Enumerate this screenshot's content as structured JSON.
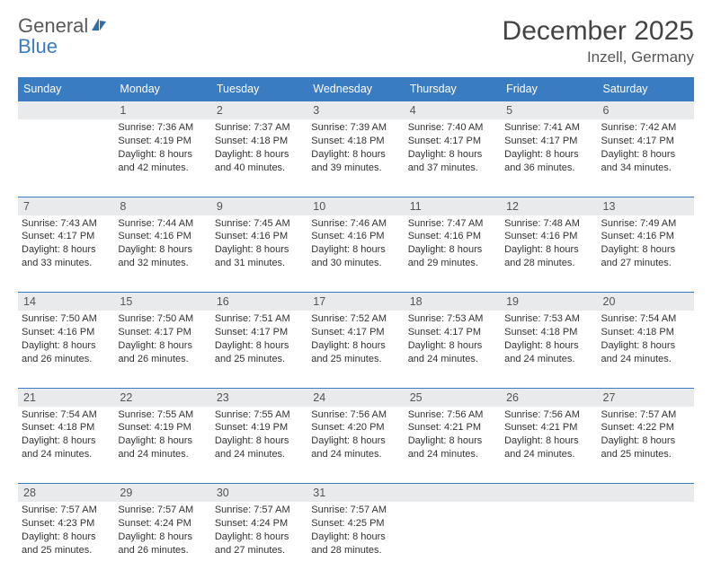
{
  "brand": {
    "name1": "General",
    "name2": "Blue"
  },
  "title": "December 2025",
  "location": "Inzell, Germany",
  "colors": {
    "header_bg": "#3a7cc2",
    "header_text": "#ffffff",
    "daybar_bg": "#e9eaeb",
    "rule": "#3a7cc2",
    "page_bg": "#ffffff",
    "text": "#333333"
  },
  "day_headers": [
    "Sunday",
    "Monday",
    "Tuesday",
    "Wednesday",
    "Thursday",
    "Friday",
    "Saturday"
  ],
  "weeks": [
    {
      "nums": [
        "",
        "1",
        "2",
        "3",
        "4",
        "5",
        "6"
      ],
      "cells": [
        null,
        {
          "sr": "Sunrise: 7:36 AM",
          "ss": "Sunset: 4:19 PM",
          "d1": "Daylight: 8 hours",
          "d2": "and 42 minutes."
        },
        {
          "sr": "Sunrise: 7:37 AM",
          "ss": "Sunset: 4:18 PM",
          "d1": "Daylight: 8 hours",
          "d2": "and 40 minutes."
        },
        {
          "sr": "Sunrise: 7:39 AM",
          "ss": "Sunset: 4:18 PM",
          "d1": "Daylight: 8 hours",
          "d2": "and 39 minutes."
        },
        {
          "sr": "Sunrise: 7:40 AM",
          "ss": "Sunset: 4:17 PM",
          "d1": "Daylight: 8 hours",
          "d2": "and 37 minutes."
        },
        {
          "sr": "Sunrise: 7:41 AM",
          "ss": "Sunset: 4:17 PM",
          "d1": "Daylight: 8 hours",
          "d2": "and 36 minutes."
        },
        {
          "sr": "Sunrise: 7:42 AM",
          "ss": "Sunset: 4:17 PM",
          "d1": "Daylight: 8 hours",
          "d2": "and 34 minutes."
        }
      ]
    },
    {
      "nums": [
        "7",
        "8",
        "9",
        "10",
        "11",
        "12",
        "13"
      ],
      "cells": [
        {
          "sr": "Sunrise: 7:43 AM",
          "ss": "Sunset: 4:17 PM",
          "d1": "Daylight: 8 hours",
          "d2": "and 33 minutes."
        },
        {
          "sr": "Sunrise: 7:44 AM",
          "ss": "Sunset: 4:16 PM",
          "d1": "Daylight: 8 hours",
          "d2": "and 32 minutes."
        },
        {
          "sr": "Sunrise: 7:45 AM",
          "ss": "Sunset: 4:16 PM",
          "d1": "Daylight: 8 hours",
          "d2": "and 31 minutes."
        },
        {
          "sr": "Sunrise: 7:46 AM",
          "ss": "Sunset: 4:16 PM",
          "d1": "Daylight: 8 hours",
          "d2": "and 30 minutes."
        },
        {
          "sr": "Sunrise: 7:47 AM",
          "ss": "Sunset: 4:16 PM",
          "d1": "Daylight: 8 hours",
          "d2": "and 29 minutes."
        },
        {
          "sr": "Sunrise: 7:48 AM",
          "ss": "Sunset: 4:16 PM",
          "d1": "Daylight: 8 hours",
          "d2": "and 28 minutes."
        },
        {
          "sr": "Sunrise: 7:49 AM",
          "ss": "Sunset: 4:16 PM",
          "d1": "Daylight: 8 hours",
          "d2": "and 27 minutes."
        }
      ]
    },
    {
      "nums": [
        "14",
        "15",
        "16",
        "17",
        "18",
        "19",
        "20"
      ],
      "cells": [
        {
          "sr": "Sunrise: 7:50 AM",
          "ss": "Sunset: 4:16 PM",
          "d1": "Daylight: 8 hours",
          "d2": "and 26 minutes."
        },
        {
          "sr": "Sunrise: 7:50 AM",
          "ss": "Sunset: 4:17 PM",
          "d1": "Daylight: 8 hours",
          "d2": "and 26 minutes."
        },
        {
          "sr": "Sunrise: 7:51 AM",
          "ss": "Sunset: 4:17 PM",
          "d1": "Daylight: 8 hours",
          "d2": "and 25 minutes."
        },
        {
          "sr": "Sunrise: 7:52 AM",
          "ss": "Sunset: 4:17 PM",
          "d1": "Daylight: 8 hours",
          "d2": "and 25 minutes."
        },
        {
          "sr": "Sunrise: 7:53 AM",
          "ss": "Sunset: 4:17 PM",
          "d1": "Daylight: 8 hours",
          "d2": "and 24 minutes."
        },
        {
          "sr": "Sunrise: 7:53 AM",
          "ss": "Sunset: 4:18 PM",
          "d1": "Daylight: 8 hours",
          "d2": "and 24 minutes."
        },
        {
          "sr": "Sunrise: 7:54 AM",
          "ss": "Sunset: 4:18 PM",
          "d1": "Daylight: 8 hours",
          "d2": "and 24 minutes."
        }
      ]
    },
    {
      "nums": [
        "21",
        "22",
        "23",
        "24",
        "25",
        "26",
        "27"
      ],
      "cells": [
        {
          "sr": "Sunrise: 7:54 AM",
          "ss": "Sunset: 4:18 PM",
          "d1": "Daylight: 8 hours",
          "d2": "and 24 minutes."
        },
        {
          "sr": "Sunrise: 7:55 AM",
          "ss": "Sunset: 4:19 PM",
          "d1": "Daylight: 8 hours",
          "d2": "and 24 minutes."
        },
        {
          "sr": "Sunrise: 7:55 AM",
          "ss": "Sunset: 4:19 PM",
          "d1": "Daylight: 8 hours",
          "d2": "and 24 minutes."
        },
        {
          "sr": "Sunrise: 7:56 AM",
          "ss": "Sunset: 4:20 PM",
          "d1": "Daylight: 8 hours",
          "d2": "and 24 minutes."
        },
        {
          "sr": "Sunrise: 7:56 AM",
          "ss": "Sunset: 4:21 PM",
          "d1": "Daylight: 8 hours",
          "d2": "and 24 minutes."
        },
        {
          "sr": "Sunrise: 7:56 AM",
          "ss": "Sunset: 4:21 PM",
          "d1": "Daylight: 8 hours",
          "d2": "and 24 minutes."
        },
        {
          "sr": "Sunrise: 7:57 AM",
          "ss": "Sunset: 4:22 PM",
          "d1": "Daylight: 8 hours",
          "d2": "and 25 minutes."
        }
      ]
    },
    {
      "nums": [
        "28",
        "29",
        "30",
        "31",
        "",
        "",
        ""
      ],
      "cells": [
        {
          "sr": "Sunrise: 7:57 AM",
          "ss": "Sunset: 4:23 PM",
          "d1": "Daylight: 8 hours",
          "d2": "and 25 minutes."
        },
        {
          "sr": "Sunrise: 7:57 AM",
          "ss": "Sunset: 4:24 PM",
          "d1": "Daylight: 8 hours",
          "d2": "and 26 minutes."
        },
        {
          "sr": "Sunrise: 7:57 AM",
          "ss": "Sunset: 4:24 PM",
          "d1": "Daylight: 8 hours",
          "d2": "and 27 minutes."
        },
        {
          "sr": "Sunrise: 7:57 AM",
          "ss": "Sunset: 4:25 PM",
          "d1": "Daylight: 8 hours",
          "d2": "and 28 minutes."
        },
        null,
        null,
        null
      ]
    }
  ]
}
